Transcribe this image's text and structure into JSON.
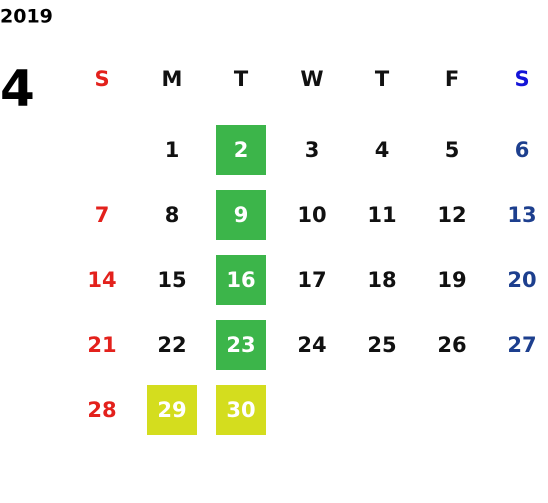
{
  "year": "2019",
  "month": "4",
  "weekdays": [
    "S",
    "M",
    "T",
    "W",
    "T",
    "F",
    "S"
  ],
  "weekday_colors": [
    "#e3211c",
    "#111111",
    "#111111",
    "#111111",
    "#111111",
    "#111111",
    "#1414d8"
  ],
  "day_colors": [
    "#e3211c",
    "#111111",
    "#111111",
    "#111111",
    "#111111",
    "#111111",
    "#1d3f8e"
  ],
  "weeks": [
    [
      null,
      1,
      2,
      3,
      4,
      5,
      6
    ],
    [
      7,
      8,
      9,
      10,
      11,
      12,
      13
    ],
    [
      14,
      15,
      16,
      17,
      18,
      19,
      20
    ],
    [
      21,
      22,
      23,
      24,
      25,
      26,
      27
    ],
    [
      28,
      29,
      30,
      null,
      null,
      null,
      null
    ]
  ],
  "highlights": {
    "#3cb54a": [
      2,
      9,
      16,
      23
    ],
    "#d4dd1e": [
      29,
      30
    ]
  },
  "highlight_text_color": "#ffffff"
}
